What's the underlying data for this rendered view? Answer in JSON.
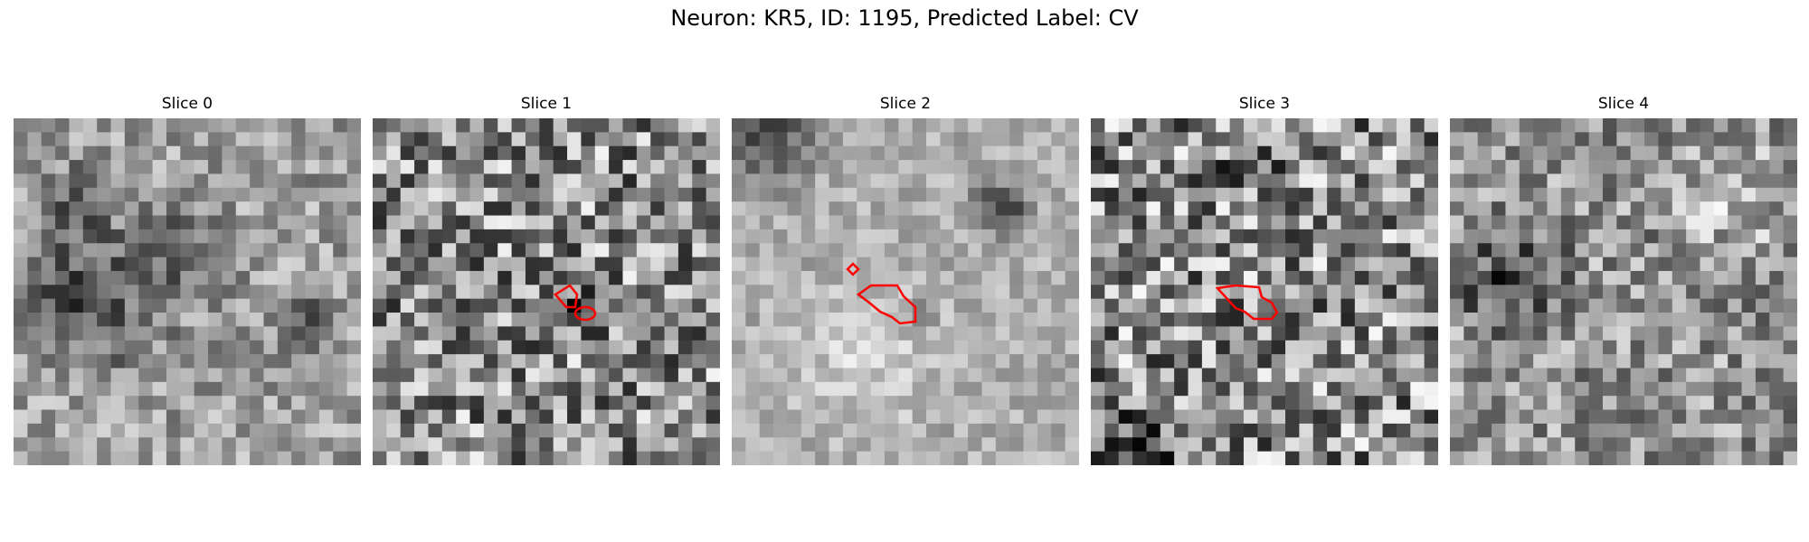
{
  "figure": {
    "title": "Neuron: KR5, ID: 1195, Predicted Label: CV"
  },
  "panels": [
    {
      "title": "Slice 0"
    },
    {
      "title": "Slice 1"
    },
    {
      "title": "Slice 2"
    },
    {
      "title": "Slice 3"
    },
    {
      "title": "Slice 4"
    }
  ],
  "colors": {
    "contour": "#ff0000",
    "colormap": "gray"
  }
}
